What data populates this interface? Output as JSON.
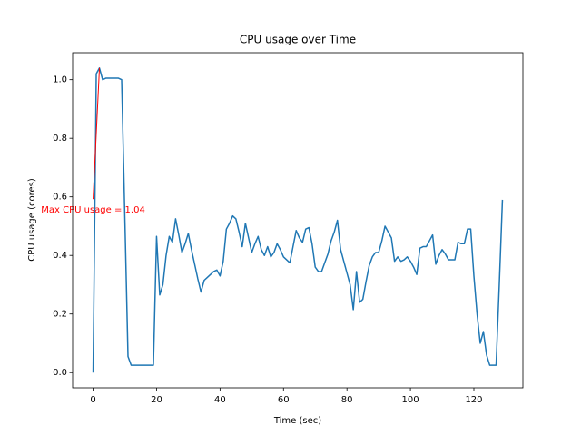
{
  "chart_data": {
    "type": "line",
    "title": "CPU usage over Time",
    "xlabel": "Time (sec)",
    "ylabel": "CPU usage (cores)",
    "x": [
      0,
      1,
      2,
      3,
      4,
      5,
      6,
      7,
      8,
      9,
      10,
      11,
      12,
      13,
      14,
      15,
      16,
      17,
      18,
      19,
      20,
      21,
      22,
      23,
      24,
      25,
      26,
      27,
      28,
      29,
      30,
      31,
      32,
      33,
      34,
      35,
      36,
      37,
      38,
      39,
      40,
      41,
      42,
      43,
      44,
      45,
      46,
      47,
      48,
      49,
      50,
      51,
      52,
      53,
      54,
      55,
      56,
      57,
      58,
      59,
      60,
      61,
      62,
      63,
      64,
      65,
      66,
      67,
      68,
      69,
      70,
      71,
      72,
      73,
      74,
      75,
      76,
      77,
      78,
      79,
      80,
      81,
      82,
      83,
      84,
      85,
      86,
      87,
      88,
      89,
      90,
      91,
      92,
      93,
      94,
      95,
      96,
      97,
      98,
      99,
      100,
      101,
      102,
      103,
      104,
      105,
      106,
      107,
      108,
      109,
      110,
      111,
      112,
      113,
      114,
      115,
      116,
      117,
      118,
      119,
      120,
      121,
      122,
      123,
      124,
      125,
      126,
      127,
      128,
      129
    ],
    "series": [
      {
        "name": "CPU usage",
        "color": "#1f77b4",
        "values": [
          0.0,
          1.02,
          1.04,
          1.0,
          1.005,
          1.005,
          1.005,
          1.005,
          1.005,
          1.0,
          0.53,
          0.055,
          0.025,
          0.025,
          0.025,
          0.025,
          0.025,
          0.025,
          0.025,
          0.025,
          0.465,
          0.265,
          0.3,
          0.4,
          0.465,
          0.445,
          0.525,
          0.47,
          0.41,
          0.44,
          0.475,
          0.42,
          0.37,
          0.32,
          0.275,
          0.315,
          0.325,
          0.335,
          0.345,
          0.35,
          0.33,
          0.38,
          0.49,
          0.51,
          0.535,
          0.525,
          0.48,
          0.43,
          0.51,
          0.46,
          0.41,
          0.44,
          0.465,
          0.42,
          0.4,
          0.43,
          0.395,
          0.41,
          0.44,
          0.42,
          0.395,
          0.385,
          0.375,
          0.43,
          0.485,
          0.46,
          0.445,
          0.49,
          0.495,
          0.44,
          0.36,
          0.345,
          0.345,
          0.375,
          0.405,
          0.45,
          0.48,
          0.52,
          0.42,
          0.38,
          0.34,
          0.3,
          0.215,
          0.345,
          0.24,
          0.25,
          0.31,
          0.365,
          0.395,
          0.41,
          0.41,
          0.45,
          0.5,
          0.48,
          0.46,
          0.38,
          0.395,
          0.38,
          0.385,
          0.395,
          0.38,
          0.36,
          0.335,
          0.425,
          0.43,
          0.43,
          0.45,
          0.47,
          0.37,
          0.4,
          0.42,
          0.405,
          0.385,
          0.385,
          0.385,
          0.445,
          0.44,
          0.44,
          0.49,
          0.49,
          0.33,
          0.2,
          0.1,
          0.14,
          0.06,
          0.025,
          0.025,
          0.025,
          0.3,
          0.59
        ]
      }
    ],
    "xlim": [
      -6.45,
      135.45
    ],
    "ylim": [
      -0.052,
      1.092
    ],
    "xticks": [
      0,
      20,
      40,
      60,
      80,
      100,
      120
    ],
    "yticks": [
      {
        "value": 0,
        "label": "0.0"
      },
      0.2,
      0.4,
      0.6,
      0.8,
      {
        "value": 1,
        "label": "1.0"
      }
    ],
    "annotation": {
      "text": "Max CPU usage = 1.04",
      "xy": [
        2,
        1.04
      ],
      "xytext": [
        0,
        0.555
      ],
      "color": "red"
    }
  }
}
